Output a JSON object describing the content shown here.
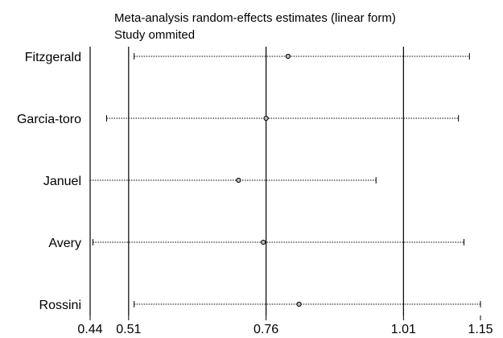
{
  "chart_data": {
    "type": "forest",
    "title": "Meta-analysis random-effects estimates (linear form)",
    "subtitle": "Study ommited",
    "xlim": [
      0.44,
      1.15
    ],
    "ticks": [
      {
        "value": 0.44,
        "label": "0.44"
      },
      {
        "value": 0.51,
        "label": "0.51"
      },
      {
        "value": 0.76,
        "label": "0.76"
      },
      {
        "value": 1.01,
        "label": "1.01"
      },
      {
        "value": 1.15,
        "label": "1.15"
      }
    ],
    "reference_lines": [
      0.51,
      0.76,
      1.01
    ],
    "studies": [
      {
        "name": "Fitzgerald",
        "estimate": 0.8,
        "lower": 0.52,
        "upper": 1.13
      },
      {
        "name": "Garcia-toro",
        "estimate": 0.76,
        "lower": 0.47,
        "upper": 1.11
      },
      {
        "name": "Januel",
        "estimate": 0.71,
        "lower": 0.44,
        "upper": 0.96
      },
      {
        "name": "Avery",
        "estimate": 0.755,
        "lower": 0.445,
        "upper": 1.12
      },
      {
        "name": "Rossini",
        "estimate": 0.82,
        "lower": 0.52,
        "upper": 1.15
      }
    ],
    "grid": false
  }
}
